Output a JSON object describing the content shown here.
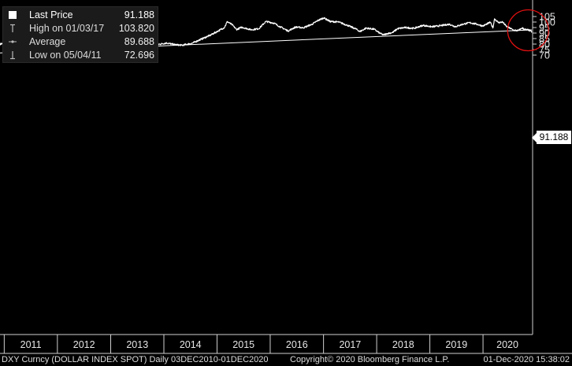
{
  "legend": {
    "rows": [
      {
        "label": "Last Price",
        "value": "91.188",
        "icon": "white-square-icon"
      },
      {
        "label": "High on 01/03/17",
        "value": "103.820",
        "icon": "high-marker-icon"
      },
      {
        "label": "Average",
        "value": "89.688",
        "icon": "average-line-icon"
      },
      {
        "label": "Low on 05/04/11",
        "value": "72.696",
        "icon": "low-marker-icon"
      }
    ]
  },
  "last_price_tag": "91.188",
  "footer": {
    "left": "DXY Curncy  (DOLLAR INDEX SPOT)  Daily 03DEC2010-01DEC2020",
    "middle": "Copyright© 2020 Bloomberg Finance L.P.",
    "right": "01-Dec-2020 15:38:02"
  },
  "colors": {
    "background": "#000000",
    "price_line": "#ffffff",
    "trend_line": "#ffffff",
    "highlight_circle": "#e01010",
    "grid": "#555555"
  },
  "chart_data": {
    "type": "line",
    "title": "",
    "xlabel": "",
    "ylabel": "",
    "xlim": [
      "2010-12-03",
      "2020-12-01"
    ],
    "ylim": [
      70,
      106
    ],
    "y_ticks": [
      70,
      75,
      80,
      85,
      90,
      95,
      100,
      105
    ],
    "x_tick_labels": [
      "2011",
      "2012",
      "2013",
      "2014",
      "2015",
      "2016",
      "2017",
      "2018",
      "2019",
      "2020"
    ],
    "grid": true,
    "legend_position": "top-left",
    "series": [
      {
        "name": "Last Price",
        "points": [
          [
            "2010-12-03",
            80.0
          ],
          [
            "2011-01-07",
            81.0
          ],
          [
            "2011-02-15",
            77.5
          ],
          [
            "2011-03-20",
            76.0
          ],
          [
            "2011-05-04",
            72.7
          ],
          [
            "2011-06-10",
            74.5
          ],
          [
            "2011-07-20",
            74.0
          ],
          [
            "2011-08-25",
            73.5
          ],
          [
            "2011-09-30",
            78.5
          ],
          [
            "2011-10-28",
            76.0
          ],
          [
            "2011-12-30",
            80.0
          ],
          [
            "2012-01-12",
            81.5
          ],
          [
            "2012-02-28",
            78.5
          ],
          [
            "2012-04-15",
            79.2
          ],
          [
            "2012-06-01",
            83.0
          ],
          [
            "2012-07-24",
            84.0
          ],
          [
            "2012-09-14",
            78.6
          ],
          [
            "2012-11-15",
            80.8
          ],
          [
            "2013-01-31",
            79.0
          ],
          [
            "2013-03-20",
            82.7
          ],
          [
            "2013-05-20",
            84.5
          ],
          [
            "2013-07-09",
            84.7
          ],
          [
            "2013-09-15",
            81.0
          ],
          [
            "2013-10-24",
            79.0
          ],
          [
            "2014-01-20",
            81.0
          ],
          [
            "2014-03-15",
            79.5
          ],
          [
            "2014-05-07",
            78.9
          ],
          [
            "2014-07-15",
            80.8
          ],
          [
            "2014-09-15",
            84.5
          ],
          [
            "2014-11-15",
            88.0
          ],
          [
            "2015-01-10",
            92.0
          ],
          [
            "2015-02-20",
            95.0
          ],
          [
            "2015-03-13",
            100.4
          ],
          [
            "2015-04-15",
            97.5
          ],
          [
            "2015-05-15",
            93.2
          ],
          [
            "2015-06-20",
            95.3
          ],
          [
            "2015-08-24",
            93.0
          ],
          [
            "2015-10-15",
            94.0
          ],
          [
            "2015-12-02",
            100.5
          ],
          [
            "2016-01-28",
            99.0
          ],
          [
            "2016-02-20",
            97.0
          ],
          [
            "2016-05-03",
            91.9
          ],
          [
            "2016-06-24",
            95.5
          ],
          [
            "2016-08-15",
            94.8
          ],
          [
            "2016-10-15",
            98.0
          ],
          [
            "2016-11-25",
            101.5
          ],
          [
            "2017-01-03",
            103.8
          ],
          [
            "2017-02-15",
            100.5
          ],
          [
            "2017-04-15",
            100.0
          ],
          [
            "2017-06-15",
            97.0
          ],
          [
            "2017-08-15",
            93.5
          ],
          [
            "2017-09-08",
            91.3
          ],
          [
            "2017-10-20",
            94.5
          ],
          [
            "2017-12-15",
            93.5
          ],
          [
            "2018-01-15",
            90.5
          ],
          [
            "2018-02-15",
            88.3
          ],
          [
            "2018-03-15",
            89.5
          ],
          [
            "2018-04-20",
            90.5
          ],
          [
            "2018-05-25",
            94.0
          ],
          [
            "2018-07-15",
            95.0
          ],
          [
            "2018-09-15",
            94.3
          ],
          [
            "2018-11-15",
            97.0
          ],
          [
            "2019-01-15",
            95.7
          ],
          [
            "2019-03-15",
            96.7
          ],
          [
            "2019-05-15",
            98.0
          ],
          [
            "2019-06-25",
            95.8
          ],
          [
            "2019-08-15",
            98.0
          ],
          [
            "2019-09-30",
            99.4
          ],
          [
            "2019-11-15",
            98.2
          ],
          [
            "2019-12-31",
            96.4
          ],
          [
            "2020-02-20",
            99.8
          ],
          [
            "2020-03-09",
            94.6
          ],
          [
            "2020-03-20",
            103.0
          ],
          [
            "2020-04-15",
            99.5
          ],
          [
            "2020-05-15",
            100.0
          ],
          [
            "2020-06-10",
            96.0
          ],
          [
            "2020-07-31",
            92.5
          ],
          [
            "2020-08-30",
            92.2
          ],
          [
            "2020-09-25",
            94.6
          ],
          [
            "2020-10-20",
            93.0
          ],
          [
            "2020-11-10",
            92.8
          ],
          [
            "2020-12-01",
            91.188
          ]
        ]
      },
      {
        "name": "",
        "points": [
          [
            "2010-12-03",
            72.0
          ],
          [
            "2020-12-01",
            92.9
          ]
        ]
      }
    ],
    "annotations": [
      {
        "type": "circle",
        "center": [
          "2020-10-15",
          92.5
        ],
        "label": ""
      }
    ]
  }
}
